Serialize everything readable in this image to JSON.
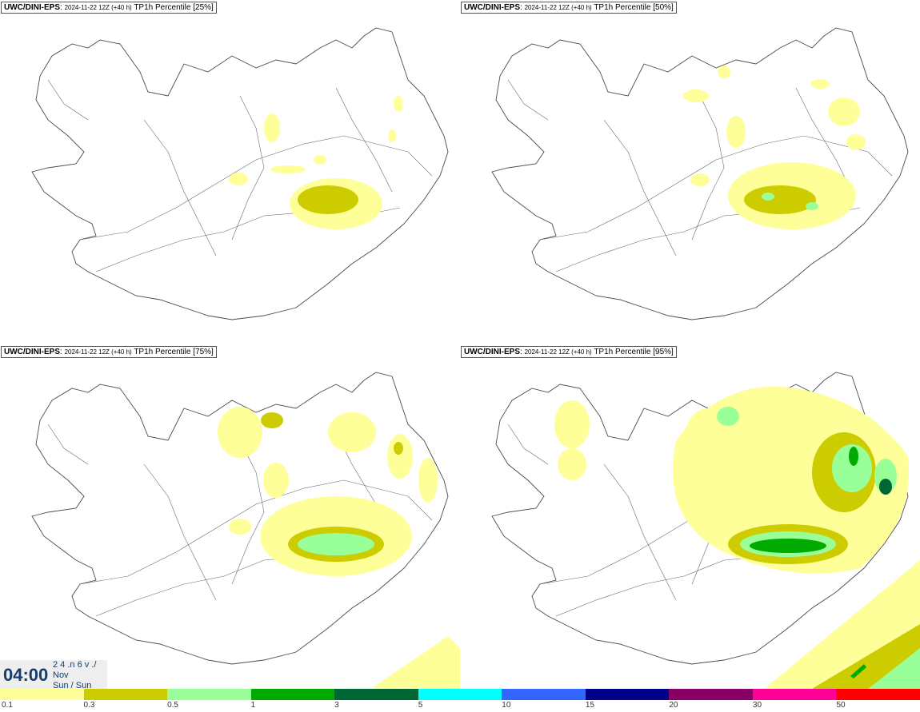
{
  "panels": [
    {
      "source": "UWC/DINI-EPS",
      "run": "2024-11-22 12Z (+40 h)",
      "label": "TP1h Percentile [25%]"
    },
    {
      "source": "UWC/DINI-EPS",
      "run": "2024-11-22 12Z (+40 h)",
      "label": "TP1h Percentile [50%]"
    },
    {
      "source": "UWC/DINI-EPS",
      "run": "2024-11-22 12Z (+40 h)",
      "label": "TP1h Percentile [75%]"
    },
    {
      "source": "UWC/DINI-EPS",
      "run": "2024-11-22 12Z (+40 h)",
      "label": "TP1h Percentile [95%]"
    }
  ],
  "valid_time": {
    "time": "04:00",
    "day": "2 4 .n 6 v ./",
    "month": "Nov",
    "weekday": "Sun / Sun"
  },
  "legend": {
    "colors": [
      "#ffff99",
      "#cccc00",
      "#99ff99",
      "#00aa00",
      "#006633",
      "#00ffff",
      "#3366ff",
      "#000088",
      "#880066",
      "#ff0099",
      "#ff0000"
    ],
    "ticks": [
      "0.1",
      "0.3",
      "0.5",
      "1",
      "3",
      "5",
      "10",
      "15",
      "20",
      "30",
      "50"
    ]
  },
  "map": {
    "land_color": "#ffffff",
    "coast_color": "#4a4a4a"
  }
}
